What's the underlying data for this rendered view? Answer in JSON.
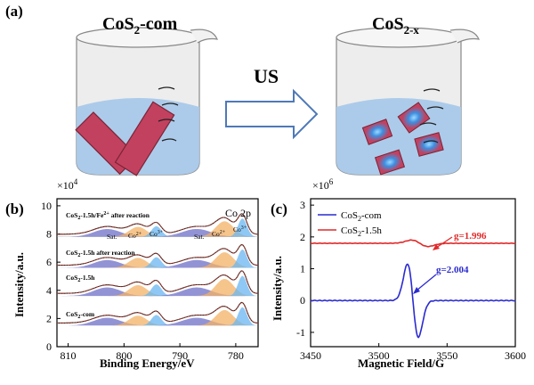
{
  "panel_a": {
    "label": "(a)",
    "left_title_base": "CoS",
    "left_title_sub": "2",
    "left_title_suffix": "-com",
    "right_title_base": "CoS",
    "right_title_sub": "2-x",
    "arrow_label": "US"
  },
  "panel_b": {
    "label": "(b)",
    "exponent": "×10",
    "exponent_sup": "4",
    "inset_title": "Co 2p",
    "ylabel": "Intensity/a.u.",
    "xlabel": "Binding Energy/eV",
    "yticks": [
      "0",
      "2",
      "4",
      "6",
      "8",
      "10"
    ],
    "xticks": [
      "810",
      "800",
      "790",
      "780"
    ],
    "curves": [
      {
        "name": "CoS2-1.5h/Fe2+ after reaction",
        "base": "CoS",
        "sub": "2",
        "mid": "-1.5h/Fe",
        "sup": "2+",
        "tail": " after reaction"
      },
      {
        "name": "CoS2-1.5h after reaction",
        "base": "CoS",
        "sub": "2",
        "mid": "-1.5h after reaction",
        "sup": "",
        "tail": ""
      },
      {
        "name": "CoS2-1.5h",
        "base": "CoS",
        "sub": "2",
        "mid": "-1.5h",
        "sup": "",
        "tail": ""
      },
      {
        "name": "CoS2-com",
        "base": "CoS",
        "sub": "2",
        "mid": "-com",
        "sup": "",
        "tail": ""
      }
    ],
    "peak_labels": {
      "sat1": "Sat.",
      "co2_1": "Co",
      "co2_1_sup": "2+",
      "co3_1": "Co",
      "co3_1_sup": "3+",
      "sat2": "Sat.",
      "co2_2": "Co",
      "co2_2_sup": "2+",
      "co3_2": "Co",
      "co3_2_sup": "3+"
    }
  },
  "panel_c": {
    "label": "(c)",
    "exponent": "×10",
    "exponent_sup": "6",
    "ylabel": "Intensity/a.u.",
    "xlabel": "Magnetic Field/G",
    "yticks": [
      "-1",
      "0",
      "1",
      "2",
      "3"
    ],
    "xticks": [
      "3450",
      "3500",
      "3550",
      "3600"
    ],
    "legend": [
      {
        "base": "CoS",
        "sub": "2",
        "suffix": "-com",
        "color": "#2a2ad0"
      },
      {
        "base": "CoS",
        "sub": "2",
        "suffix": "-1.5h",
        "color": "#e02a2a"
      }
    ],
    "annotations": {
      "g_red": "g=1.996",
      "g_blue": "g=2.004"
    }
  },
  "chart_data": [
    {
      "type": "line",
      "title": "Co 2p",
      "xlabel": "Binding Energy/eV",
      "ylabel": "Intensity/a.u. (×10^4)",
      "xlim": [
        812,
        776
      ],
      "ylim": [
        0,
        10
      ],
      "series": [
        {
          "name": "CoS2-1.5h/Fe2+ after reaction",
          "offset": 7.8
        },
        {
          "name": "CoS2-1.5h after reaction",
          "offset": 5.6
        },
        {
          "name": "CoS2-1.5h",
          "offset": 3.6
        },
        {
          "name": "CoS2-com",
          "offset": 1.5
        }
      ]
    },
    {
      "type": "line",
      "xlabel": "Magnetic Field/G",
      "ylabel": "Intensity/a.u. (×10^6)",
      "xlim": [
        3450,
        3600
      ],
      "ylim": [
        -1.5,
        3
      ],
      "series": [
        {
          "name": "CoS2-com",
          "baseline": 0,
          "center": 3525,
          "max": 1.2,
          "min": -1.1
        },
        {
          "name": "CoS2-1.5h",
          "baseline": 1.8,
          "center": 3530,
          "max": 1.95,
          "min": 1.75
        }
      ],
      "annotations": [
        "g=1.996",
        "g=2.004"
      ]
    }
  ]
}
